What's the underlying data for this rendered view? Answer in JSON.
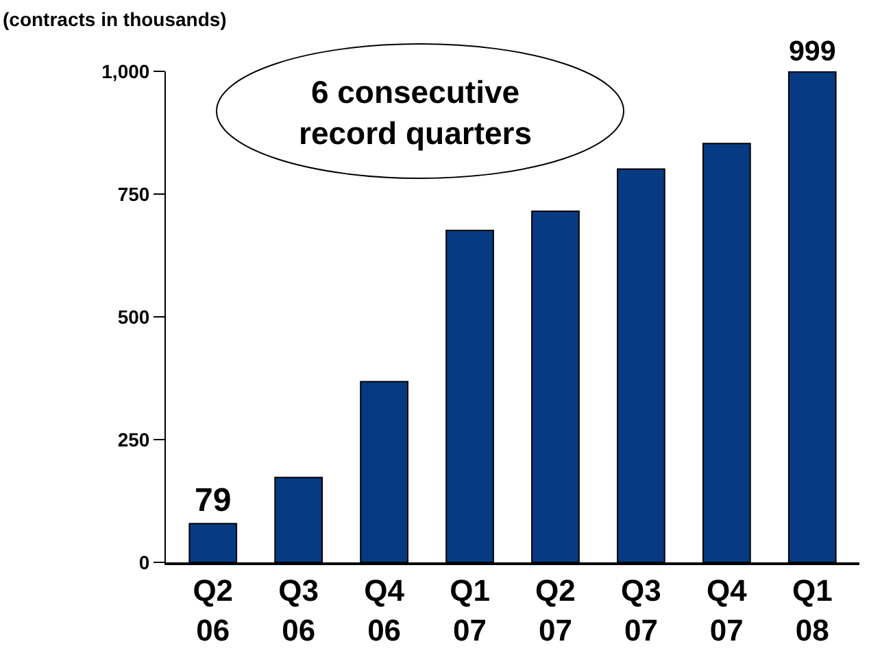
{
  "chart_data": {
    "type": "bar",
    "ylabel": "(contracts in thousands)",
    "categories": [
      "Q2\n06",
      "Q3\n06",
      "Q4\n06",
      "Q1\n07",
      "Q2\n07",
      "Q3\n07",
      "Q4\n07",
      "Q1\n08"
    ],
    "values": [
      79,
      173,
      368,
      676,
      715,
      801,
      853,
      999
    ],
    "value_labels": [
      "79",
      null,
      null,
      null,
      null,
      null,
      null,
      "999"
    ],
    "color": "#063b84",
    "ylim": [
      0,
      1000
    ],
    "yticks": [
      0,
      250,
      500,
      750,
      {
        "value": 1000,
        "label": "1,000"
      }
    ],
    "annotations": [
      "6 consecutive\nrecord quarters"
    ]
  }
}
